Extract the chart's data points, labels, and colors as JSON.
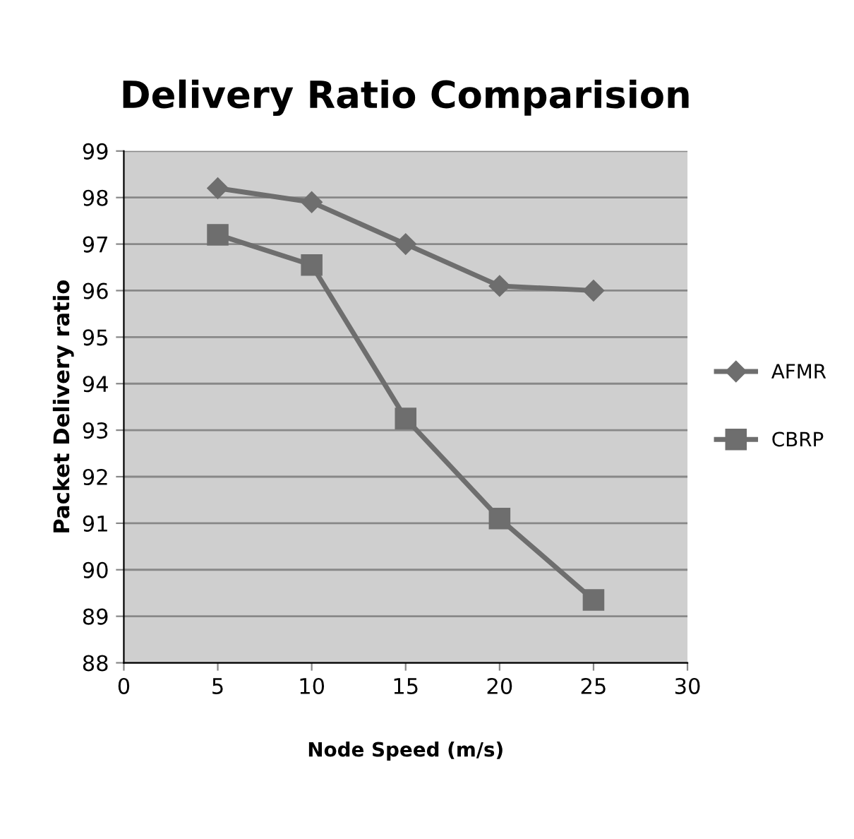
{
  "chart_data": {
    "type": "line",
    "title": "Delivery Ratio Comparision",
    "xlabel": "Node Speed (m/s)",
    "ylabel": "Packet Delivery ratio",
    "x": [
      5,
      10,
      15,
      20,
      25
    ],
    "series": [
      {
        "name": "AFMR",
        "color": "#6e6e6e",
        "marker": "diamond",
        "values": [
          98.2,
          97.9,
          97.0,
          96.1,
          96.0
        ]
      },
      {
        "name": "CBRP",
        "color": "#6e6e6e",
        "marker": "square",
        "values": [
          97.2,
          96.55,
          93.25,
          91.1,
          89.35
        ]
      }
    ],
    "xlim": [
      0,
      30
    ],
    "xticks": [
      0,
      5,
      10,
      15,
      20,
      25,
      30
    ],
    "ylim": [
      88,
      99
    ],
    "yticks": [
      88,
      89,
      90,
      91,
      92,
      93,
      94,
      95,
      96,
      97,
      98,
      99
    ],
    "grid": "y",
    "legend": "right",
    "line_style": "solid"
  }
}
